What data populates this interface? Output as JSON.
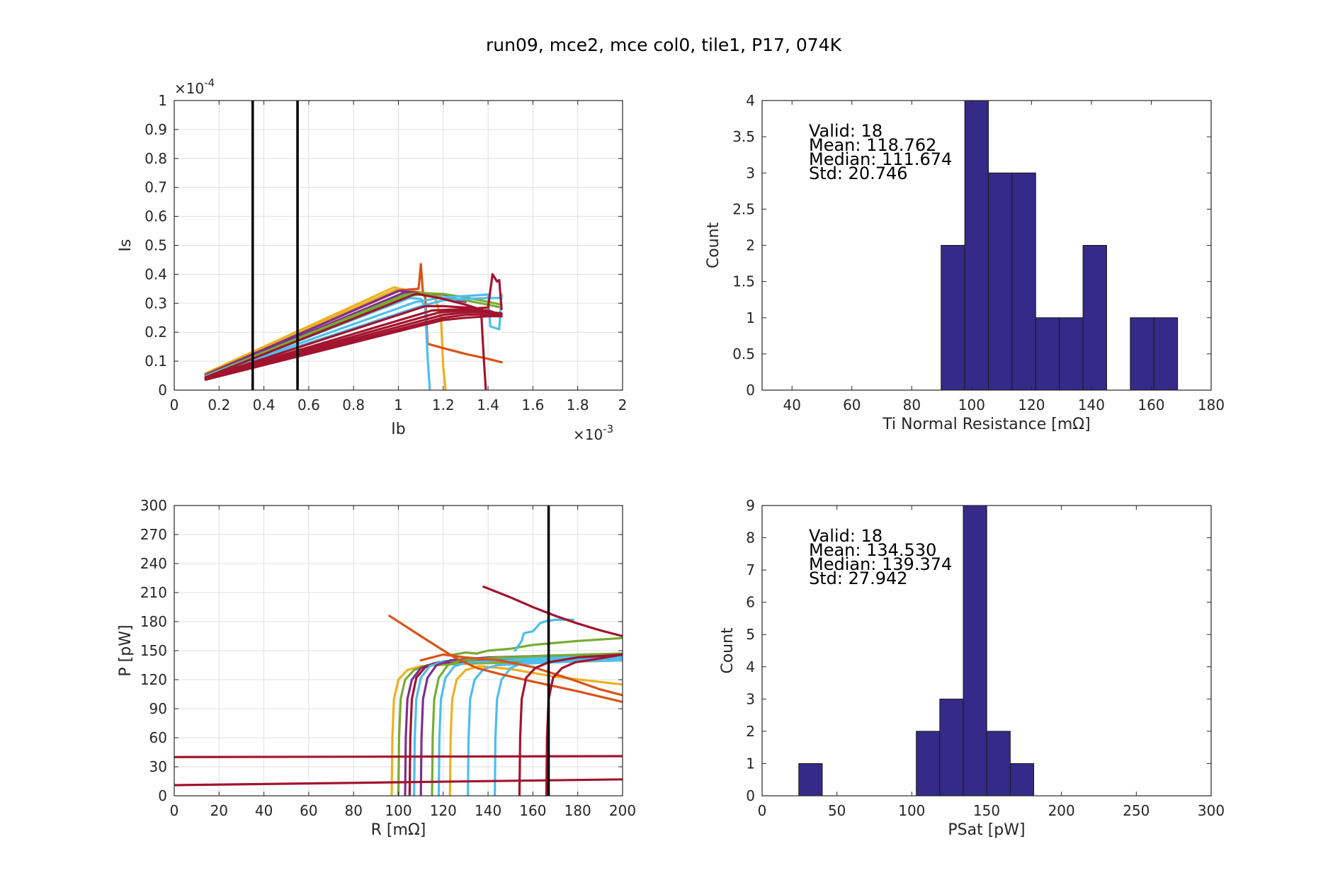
{
  "figure": {
    "suptitle": "run09, mce2, mce col0, tile1, P17, 074K"
  },
  "chart_data": [
    {
      "id": "iv",
      "type": "line",
      "xlabel": "Ib",
      "ylabel": "Is",
      "xlim": [
        0,
        0.002
      ],
      "ylim": [
        0,
        0.0001
      ],
      "xticks": [
        "0",
        "0.2",
        "0.4",
        "0.6",
        "0.8",
        "1",
        "1.2",
        "1.4",
        "1.6",
        "1.8",
        "2"
      ],
      "yticks": [
        "0",
        "0.1",
        "0.2",
        "0.3",
        "0.4",
        "0.5",
        "0.6",
        "0.7",
        "0.8",
        "0.9",
        "1"
      ],
      "x_exponent": {
        "base": "×10",
        "exp": "-3"
      },
      "y_exponent": {
        "base": "×10",
        "exp": "-4"
      },
      "grid": true,
      "vlines": [
        0.00035,
        0.00055
      ],
      "series": [
        {
          "color": "#EDB120",
          "x": [
            0.00014,
            0.00098,
            0.00104,
            0.00116,
            0.00119,
            0.0012,
            0.00121
          ],
          "y": [
            5.8e-06,
            3.55e-05,
            3.45e-05,
            3.3e-05,
            2.5e-05,
            8e-06,
            2e-07
          ]
        },
        {
          "color": "#EDB120",
          "x": [
            0.00014,
            0.00099,
            0.0011,
            0.0012
          ],
          "y": [
            5.5e-06,
            3.48e-05,
            3.35e-05,
            3.3e-05
          ]
        },
        {
          "color": "#D95319",
          "x": [
            0.00014,
            0.00101,
            0.00109,
            0.0011,
            0.00111,
            0.00112,
            0.00113
          ],
          "y": [
            5.4e-06,
            3.45e-05,
            3.5e-05,
            4.35e-05,
            3.3e-05,
            3.2e-05,
            1.6e-05
          ]
        },
        {
          "color": "#D95319",
          "x": [
            0.00113,
            0.0012,
            0.0013,
            0.0014,
            0.00146
          ],
          "y": [
            1.6e-05,
            1.45e-05,
            1.25e-05,
            1.08e-05,
            9.6e-06
          ]
        },
        {
          "color": "#7E2F8E",
          "x": [
            0.00014,
            0.001,
            0.0011,
            0.0012,
            0.00125
          ],
          "y": [
            5.2e-06,
            3.43e-05,
            3.35e-05,
            3.3e-05,
            3.25e-05
          ]
        },
        {
          "color": "#7E2F8E",
          "x": [
            0.00014,
            0.00102,
            0.0011,
            0.0012,
            0.0013
          ],
          "y": [
            5e-06,
            3.35e-05,
            3.3e-05,
            3.18e-05,
            3.05e-05
          ]
        },
        {
          "color": "#77AC30",
          "x": [
            0.00014,
            0.00103,
            0.0011,
            0.0012,
            0.0013,
            0.0014,
            0.00146
          ],
          "y": [
            4.9e-06,
            3.3e-05,
            3.35e-05,
            3.32e-05,
            3.2e-05,
            3.05e-05,
            2.95e-05
          ]
        },
        {
          "color": "#77AC30",
          "x": [
            0.00014,
            0.00104,
            0.0011,
            0.0012,
            0.0013,
            0.0014,
            0.00146
          ],
          "y": [
            4.8e-06,
            3.25e-05,
            3.3e-05,
            3.2e-05,
            3.1e-05,
            2.95e-05,
            2.85e-05
          ]
        },
        {
          "color": "#4DBEEE",
          "x": [
            0.00014,
            0.00105,
            0.0011,
            0.00112,
            0.00113,
            0.00114
          ],
          "y": [
            4.7e-06,
            3.18e-05,
            3.15e-05,
            2.8e-05,
            1.2e-05,
            2e-07
          ]
        },
        {
          "color": "#4DBEEE",
          "x": [
            0.00014,
            0.00108,
            0.0012,
            0.0013,
            0.0014,
            0.00141,
            0.00145,
            0.00146
          ],
          "y": [
            4.6e-06,
            3.05e-05,
            3.2e-05,
            3.25e-05,
            3.3e-05,
            2.2e-05,
            2.1e-05,
            3.3e-05
          ]
        },
        {
          "color": "#4DBEEE",
          "x": [
            0.00014,
            0.0011,
            0.0012,
            0.0013,
            0.0014,
            0.00146
          ],
          "y": [
            4.5e-06,
            2.9e-05,
            3.1e-05,
            3.15e-05,
            3.18e-05,
            3.18e-05
          ]
        },
        {
          "color": "#A2142F",
          "x": [
            0.00014,
            0.00108,
            0.0012,
            0.0013,
            0.0014,
            0.00146
          ],
          "y": [
            4.4e-06,
            3.33e-05,
            3.15e-05,
            2.95e-05,
            2.7e-05,
            2.6e-05
          ]
        },
        {
          "color": "#A2142F",
          "x": [
            0.00014,
            0.00112,
            0.0012,
            0.0013,
            0.00134,
            0.00137,
            0.00138,
            0.00139
          ],
          "y": [
            4.3e-06,
            2.9e-05,
            2.9e-05,
            2.85e-05,
            2.85e-05,
            2.6e-05,
            1.2e-05,
            2e-07
          ]
        },
        {
          "color": "#A2142F",
          "x": [
            0.00014,
            0.00115,
            0.0013,
            0.0014,
            0.00142,
            0.00144,
            0.00145,
            0.00146
          ],
          "y": [
            4.2e-06,
            2.75e-05,
            2.8e-05,
            2.85e-05,
            4e-05,
            3.75e-05,
            3.8e-05,
            2.8e-05
          ]
        },
        {
          "color": "#A2142F",
          "x": [
            0.00014,
            0.00118,
            0.0013,
            0.0014,
            0.00146
          ],
          "y": [
            4.1e-06,
            2.68e-05,
            2.75e-05,
            2.75e-05,
            2.6e-05
          ]
        },
        {
          "color": "#A2142F",
          "x": [
            0.00014,
            0.0012,
            0.0013,
            0.0014,
            0.00146
          ],
          "y": [
            4e-06,
            2.6e-05,
            2.68e-05,
            2.7e-05,
            2.65e-05
          ]
        },
        {
          "color": "#A2142F",
          "x": [
            0.00014,
            0.0012,
            0.0013,
            0.0014,
            0.00146
          ],
          "y": [
            3.8e-06,
            2.5e-05,
            2.6e-05,
            2.62e-05,
            2.6e-05
          ]
        },
        {
          "color": "#A2142F",
          "x": [
            0.00014,
            0.0012,
            0.0013,
            0.0014,
            0.00146
          ],
          "y": [
            3.6e-06,
            2.42e-05,
            2.5e-05,
            2.55e-05,
            2.55e-05
          ]
        }
      ]
    },
    {
      "id": "rn_hist",
      "type": "bar",
      "xlabel": "Ti Normal Resistance [mΩ]",
      "ylabel": "Count",
      "xlim": [
        30,
        180
      ],
      "ylim": [
        0,
        4
      ],
      "xticks": [
        "40",
        "60",
        "80",
        "100",
        "120",
        "140",
        "160",
        "180"
      ],
      "yticks": [
        "0",
        "0.5",
        "1",
        "1.5",
        "2",
        "2.5",
        "3",
        "3.5",
        "4"
      ],
      "bin_width": 7.9,
      "bins": [
        {
          "left": 89.8,
          "count": 2
        },
        {
          "left": 97.7,
          "count": 4
        },
        {
          "left": 105.6,
          "count": 3
        },
        {
          "left": 113.5,
          "count": 3
        },
        {
          "left": 121.4,
          "count": 1
        },
        {
          "left": 129.3,
          "count": 1
        },
        {
          "left": 137.2,
          "count": 2
        },
        {
          "left": 145.1,
          "count": 0
        },
        {
          "left": 153.0,
          "count": 1
        },
        {
          "left": 160.9,
          "count": 1
        }
      ],
      "annotations": [
        "Valid: 18",
        "Mean: 118.762",
        "Median: 111.674",
        "Std: 20.746"
      ]
    },
    {
      "id": "pr",
      "type": "line",
      "xlabel": "R [mΩ]",
      "ylabel": "P [pW]",
      "xlim": [
        0,
        200
      ],
      "ylim": [
        0,
        300
      ],
      "xticks": [
        "0",
        "20",
        "40",
        "60",
        "80",
        "100",
        "120",
        "140",
        "160",
        "180",
        "200"
      ],
      "yticks": [
        "0",
        "30",
        "60",
        "90",
        "120",
        "150",
        "180",
        "210",
        "240",
        "270",
        "300"
      ],
      "grid": true,
      "vlines": [
        167
      ],
      "series": [
        {
          "color": "#EDB120",
          "x": [
            97,
            97.3,
            98,
            100,
            104,
            110,
            125,
            140,
            170,
            200
          ],
          "y": [
            0,
            60,
            100,
            120,
            130,
            134,
            136,
            137,
            138,
            140
          ]
        },
        {
          "color": "#77AC30",
          "x": [
            100,
            100.3,
            101,
            103,
            107,
            113,
            130,
            150,
            180,
            200
          ],
          "y": [
            0,
            60,
            100,
            120,
            130,
            135,
            137,
            138,
            139,
            140
          ]
        },
        {
          "color": "#7E2F8E",
          "x": [
            103,
            103.3,
            104,
            106,
            110,
            116,
            130,
            150,
            180,
            200
          ],
          "y": [
            0,
            60,
            100,
            120,
            132,
            137,
            139,
            140,
            141,
            142
          ]
        },
        {
          "color": "#A2142F",
          "x": [
            105,
            105.3,
            106,
            108,
            112,
            118,
            135,
            160,
            200
          ],
          "y": [
            0,
            60,
            100,
            122,
            133,
            138,
            141,
            143,
            145
          ]
        },
        {
          "color": "#4DBEEE",
          "x": [
            107,
            107.3,
            108,
            110,
            114,
            120,
            140,
            170,
            200
          ],
          "y": [
            0,
            60,
            100,
            122,
            134,
            139,
            142,
            143,
            144
          ]
        },
        {
          "color": "#7E2F8E",
          "x": [
            110,
            110.3,
            111,
            113,
            117,
            123,
            140,
            170,
            200
          ],
          "y": [
            0,
            60,
            100,
            122,
            135,
            140,
            143,
            145,
            147
          ]
        },
        {
          "color": "#77AC30",
          "x": [
            115,
            115.3,
            116,
            118,
            122,
            128,
            145,
            170,
            200
          ],
          "y": [
            0,
            60,
            100,
            122,
            135,
            140,
            143,
            145,
            147
          ]
        },
        {
          "color": "#4DBEEE",
          "x": [
            118,
            118.3,
            119,
            121,
            125,
            131,
            150,
            175,
            200
          ],
          "y": [
            0,
            60,
            100,
            122,
            134,
            138,
            140,
            141,
            142
          ]
        },
        {
          "color": "#EDB120",
          "x": [
            123,
            123.3,
            124,
            126,
            130,
            136,
            150,
            170,
            200
          ],
          "y": [
            0,
            60,
            100,
            120,
            130,
            134,
            131,
            123,
            115
          ]
        },
        {
          "color": "#4DBEEE",
          "x": [
            131,
            131.3,
            132,
            134,
            138,
            144,
            160,
            180,
            200
          ],
          "y": [
            0,
            60,
            100,
            120,
            131,
            135,
            137,
            139,
            140
          ]
        },
        {
          "color": "#77AC30",
          "x": [
            122,
            130,
            135,
            140,
            150,
            160,
            180,
            200
          ],
          "y": [
            145,
            148,
            147,
            150,
            152,
            156,
            160,
            163
          ]
        },
        {
          "color": "#4DBEEE",
          "x": [
            152,
            155,
            156,
            160,
            162,
            163,
            165,
            170,
            178
          ],
          "y": [
            150,
            160,
            168,
            170,
            175,
            178,
            180,
            182,
            182
          ]
        },
        {
          "color": "#4DBEEE",
          "x": [
            143,
            143.3,
            144,
            146,
            150,
            156,
            170,
            185,
            200
          ],
          "y": [
            0,
            60,
            100,
            120,
            132,
            138,
            140,
            142,
            143
          ]
        },
        {
          "color": "#D95319",
          "x": [
            96,
            110,
            125,
            135,
            145,
            160,
            180,
            200
          ],
          "y": [
            186,
            165,
            143,
            132,
            126,
            118,
            108,
            97
          ]
        },
        {
          "color": "#D95319",
          "x": [
            110,
            120,
            130,
            145,
            160,
            175,
            190,
            200
          ],
          "y": [
            140,
            146,
            143,
            140,
            133,
            122,
            110,
            104
          ]
        },
        {
          "color": "#A2142F",
          "x": [
            138,
            150,
            160,
            170,
            180,
            190,
            200
          ],
          "y": [
            216,
            205,
            195,
            186,
            178,
            171,
            165
          ]
        },
        {
          "color": "#A2142F",
          "x": [
            154,
            154.3,
            155,
            157,
            161,
            167,
            180,
            200
          ],
          "y": [
            0,
            60,
            100,
            122,
            132,
            138,
            143,
            146
          ]
        },
        {
          "color": "#A2142F",
          "x": [
            166,
            166.3,
            167,
            169,
            173,
            179,
            190,
            200
          ],
          "y": [
            0,
            60,
            100,
            122,
            132,
            138,
            142,
            146
          ]
        },
        {
          "color": "#A2142F",
          "x": [
            0,
            100,
            200
          ],
          "y": [
            40,
            40.5,
            41
          ]
        },
        {
          "color": "#A2142F",
          "x": [
            0,
            100,
            200
          ],
          "y": [
            11,
            14,
            17
          ]
        }
      ]
    },
    {
      "id": "psat_hist",
      "type": "bar",
      "xlabel": "PSat [pW]",
      "ylabel": "Count",
      "xlim": [
        0,
        300
      ],
      "ylim": [
        0,
        9
      ],
      "xticks": [
        "0",
        "50",
        "100",
        "150",
        "200",
        "250",
        "300"
      ],
      "yticks": [
        "0",
        "1",
        "2",
        "3",
        "4",
        "5",
        "6",
        "7",
        "8",
        "9"
      ],
      "bin_width": 15.7,
      "bins": [
        {
          "left": 24.5,
          "count": 1
        },
        {
          "left": 103.0,
          "count": 2
        },
        {
          "left": 118.7,
          "count": 3
        },
        {
          "left": 134.4,
          "count": 9
        },
        {
          "left": 150.1,
          "count": 2
        },
        {
          "left": 165.8,
          "count": 1
        }
      ],
      "annotations": [
        "Valid: 18",
        "Mean: 134.530",
        "Median: 139.374",
        "Std: 27.942"
      ]
    }
  ]
}
